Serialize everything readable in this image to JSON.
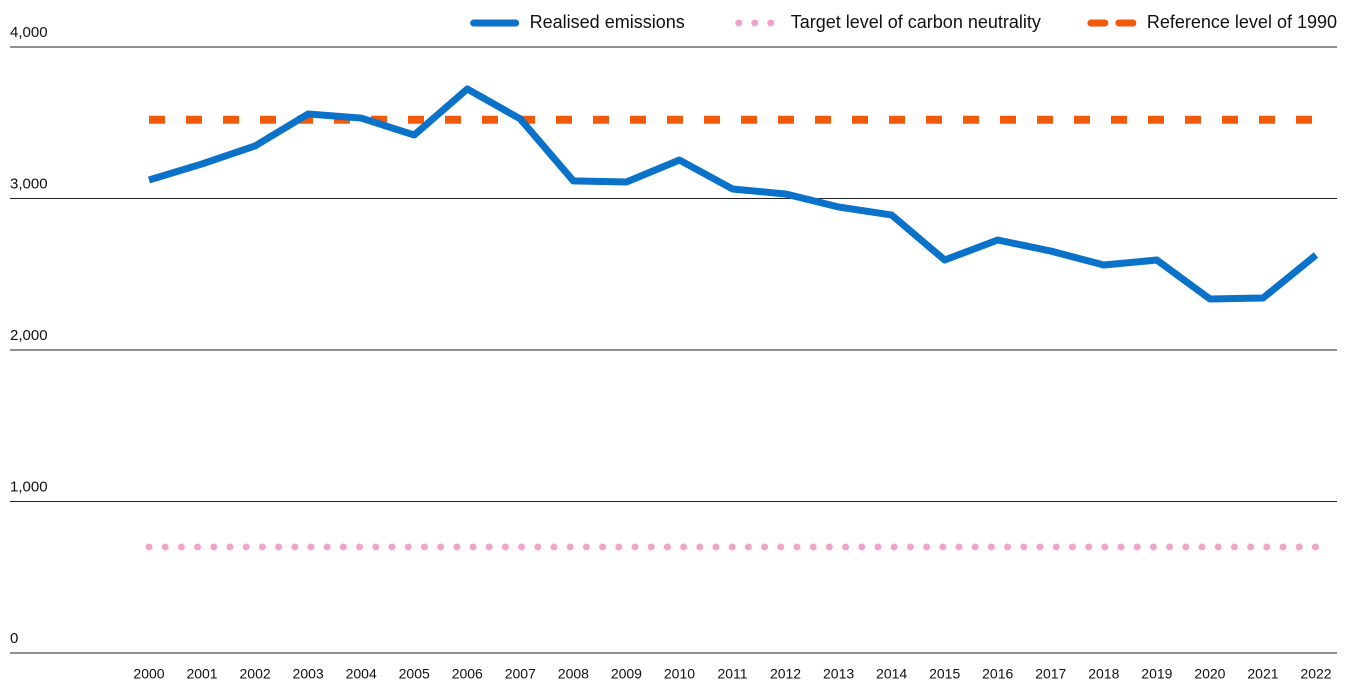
{
  "chart_data": {
    "type": "line",
    "categories": [
      "2000",
      "2001",
      "2002",
      "2003",
      "2004",
      "2005",
      "2006",
      "2007",
      "2008",
      "2009",
      "2010",
      "2011",
      "2012",
      "2013",
      "2014",
      "2015",
      "2016",
      "2017",
      "2018",
      "2019",
      "2020",
      "2021",
      "2022"
    ],
    "series": [
      {
        "name": "Realised emissions",
        "color": "#0a72c8",
        "style": "solid",
        "values": [
          3122,
          3228,
          3347,
          3558,
          3531,
          3419,
          3723,
          3525,
          3116,
          3109,
          3254,
          3063,
          3030,
          2944,
          2891,
          2594,
          2726,
          2653,
          2561,
          2594,
          2337,
          2343,
          2627
        ]
      },
      {
        "name": "Target level of carbon neutrality",
        "color": "#f2a3c9",
        "style": "dotted",
        "values": [
          700,
          700,
          700,
          700,
          700,
          700,
          700,
          700,
          700,
          700,
          700,
          700,
          700,
          700,
          700,
          700,
          700,
          700,
          700,
          700,
          700,
          700,
          700
        ]
      },
      {
        "name": "Reference level of 1990",
        "color": "#f05a0a",
        "style": "dashed",
        "values": [
          3520,
          3520,
          3520,
          3520,
          3520,
          3520,
          3520,
          3520,
          3520,
          3520,
          3520,
          3520,
          3520,
          3520,
          3520,
          3520,
          3520,
          3520,
          3520,
          3520,
          3520,
          3520,
          3520
        ]
      }
    ],
    "ylim": [
      0,
      4000
    ],
    "yticks": [
      0,
      {
        "value": 1000,
        "label": "1,000"
      },
      {
        "value": 2000,
        "label": "2,000"
      },
      {
        "value": 3000,
        "label": "3,000"
      },
      {
        "value": 4000,
        "label": "4,000"
      }
    ],
    "grid": true,
    "legend": "top-right"
  }
}
